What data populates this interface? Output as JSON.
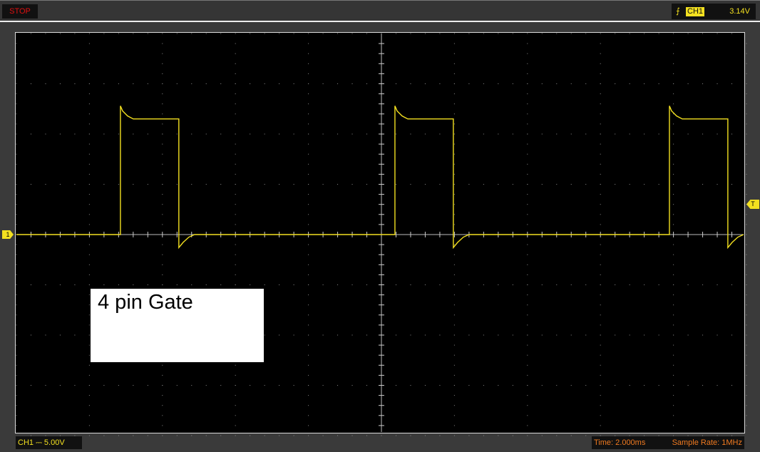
{
  "status": {
    "run_state": "STOP",
    "run_state_color": "#e01010"
  },
  "trigger": {
    "edge_icon": "rising-edge-icon",
    "source": "CH1",
    "level": "3.14V",
    "marker": "T"
  },
  "channel": {
    "marker": "1",
    "label": "CH1",
    "coupling_icon": "dc-coupling-icon",
    "coupling_glyph": "⎓",
    "volts_per_div": "5.00V",
    "color": "#f3e020"
  },
  "timebase": {
    "time": "Time: 2.000ms",
    "sample_rate": "Sample Rate: 1MHz"
  },
  "annotation": {
    "text": "4 pin Gate"
  },
  "chart_data": {
    "type": "line",
    "x_unit": "ms",
    "y_unit": "V",
    "xlim": [
      -10,
      10
    ],
    "ylim": [
      -20,
      20
    ],
    "grid": true,
    "series": [
      {
        "color": "#f3e020",
        "pulses": {
          "rising_edges_ms": [
            -7.15,
            0.37,
            7.89
          ],
          "width_ms": 1.6,
          "high_V": 11.5,
          "overshoot_peak_V": 12.8,
          "undershoot_V": -1.3,
          "baseline_V": 0
        }
      }
    ]
  }
}
